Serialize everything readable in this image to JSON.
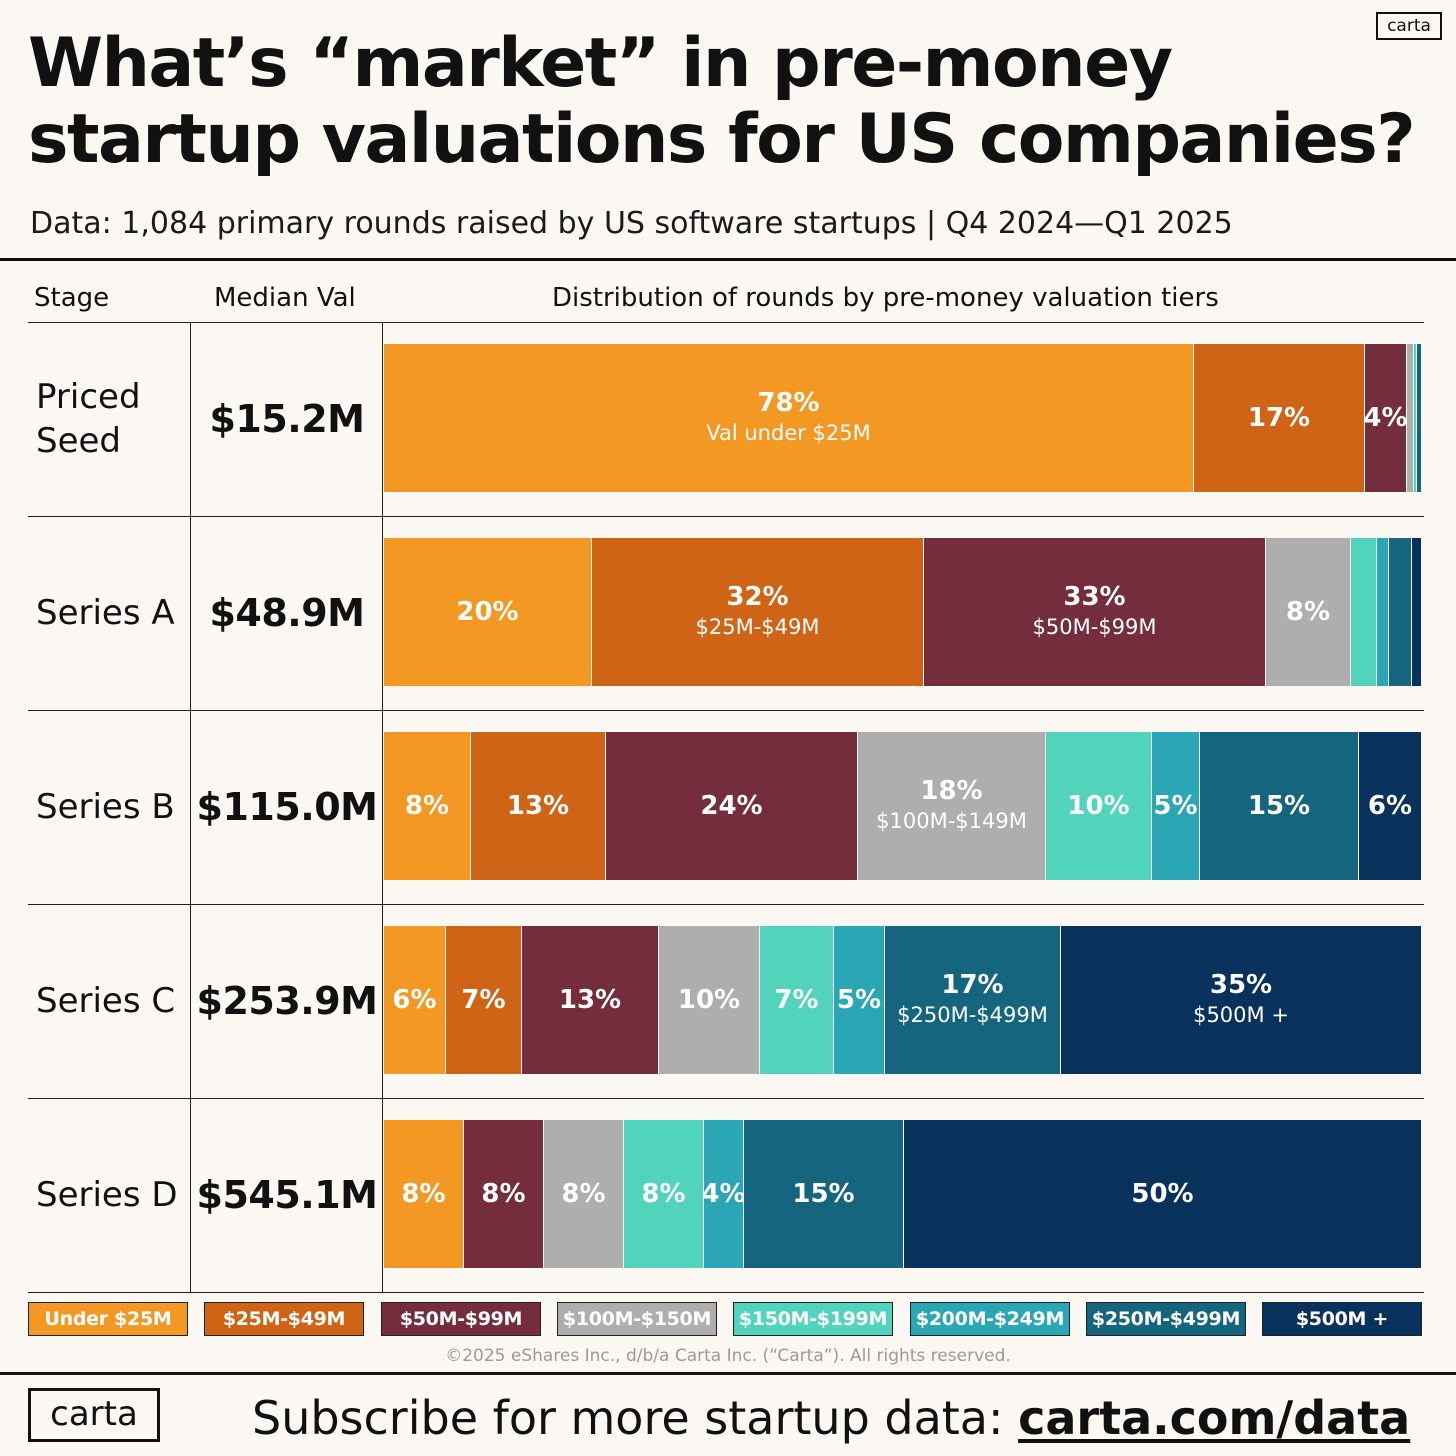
{
  "brand_badge": "carta",
  "title": "What’s “market” in pre-money startup valuations for US companies?",
  "subtitle": "Data: 1,084 primary rounds raised by US software startups | Q4 2024—Q1 2025",
  "column_headers": {
    "stage": "Stage",
    "median": "Median Val",
    "distribution": "Distribution of rounds by pre-money valuation tiers"
  },
  "chart_data": {
    "type": "bar",
    "orientation": "horizontal-stacked-100",
    "tiers": [
      "Under $25M",
      "$25M-$49M",
      "$50M-$99M",
      "$100M-$150M",
      "$150M-$199M",
      "$200M-$249M",
      "$250M-$499M",
      "$500M +"
    ],
    "colors": [
      "#f49824",
      "#cf6416",
      "#742d3c",
      "#aeaeae",
      "#52d3bb",
      "#2aa6b5",
      "#15657f",
      "#08315b"
    ],
    "rows": [
      {
        "stage": "Priced Seed",
        "median": "$15.2M",
        "segments": [
          {
            "tier": 0,
            "value": 78,
            "label": "78%",
            "sub": "Val under $25M"
          },
          {
            "tier": 1,
            "value": 16.5,
            "label": "17%"
          },
          {
            "tier": 2,
            "value": 4.1,
            "label": "4%"
          },
          {
            "tier": 3,
            "value": 0.6,
            "label": ""
          },
          {
            "tier": 4,
            "value": 0.3,
            "label": ""
          },
          {
            "tier": 6,
            "value": 0.5,
            "label": ""
          }
        ]
      },
      {
        "stage": "Series A",
        "median": "$48.9M",
        "segments": [
          {
            "tier": 0,
            "value": 20,
            "label": "20%"
          },
          {
            "tier": 1,
            "value": 32,
            "label": "32%",
            "sub": "$25M-$49M"
          },
          {
            "tier": 2,
            "value": 33,
            "label": "33%",
            "sub": "$50M-$99M"
          },
          {
            "tier": 3,
            "value": 8.2,
            "label": "8%"
          },
          {
            "tier": 4,
            "value": 2.5,
            "label": ""
          },
          {
            "tier": 5,
            "value": 1.1,
            "label": ""
          },
          {
            "tier": 6,
            "value": 2.2,
            "label": ""
          },
          {
            "tier": 7,
            "value": 1,
            "label": ""
          }
        ]
      },
      {
        "stage": "Series B",
        "median": "$115.0M",
        "segments": [
          {
            "tier": 0,
            "value": 8.4,
            "label": "8%"
          },
          {
            "tier": 1,
            "value": 13,
            "label": "13%"
          },
          {
            "tier": 2,
            "value": 24.3,
            "label": "24%"
          },
          {
            "tier": 3,
            "value": 18.1,
            "label": "18%",
            "sub": "$100M-$149M"
          },
          {
            "tier": 4,
            "value": 10.2,
            "label": "10%"
          },
          {
            "tier": 5,
            "value": 4.6,
            "label": "5%"
          },
          {
            "tier": 6,
            "value": 15.3,
            "label": "15%"
          },
          {
            "tier": 7,
            "value": 6.1,
            "label": "6%"
          }
        ]
      },
      {
        "stage": "Series C",
        "median": "$253.9M",
        "segments": [
          {
            "tier": 0,
            "value": 6,
            "label": "6%"
          },
          {
            "tier": 1,
            "value": 7.3,
            "label": "7%"
          },
          {
            "tier": 2,
            "value": 13.2,
            "label": "13%"
          },
          {
            "tier": 3,
            "value": 9.7,
            "label": "10%"
          },
          {
            "tier": 4,
            "value": 7.2,
            "label": "7%"
          },
          {
            "tier": 5,
            "value": 4.9,
            "label": "5%"
          },
          {
            "tier": 6,
            "value": 16.9,
            "label": "17%",
            "sub": "$250M-$499M"
          },
          {
            "tier": 7,
            "value": 34.8,
            "label": "35%",
            "sub": "$500M +"
          }
        ]
      },
      {
        "stage": "Series D",
        "median": "$545.1M",
        "segments": [
          {
            "tier": 0,
            "value": 7.7,
            "label": "8%"
          },
          {
            "tier": 2,
            "value": 7.7,
            "label": "8%"
          },
          {
            "tier": 3,
            "value": 7.7,
            "label": "8%"
          },
          {
            "tier": 4,
            "value": 7.7,
            "label": "8%"
          },
          {
            "tier": 5,
            "value": 3.9,
            "label": "4%"
          },
          {
            "tier": 6,
            "value": 15.4,
            "label": "15%"
          },
          {
            "tier": 7,
            "value": 49.9,
            "label": "50%"
          }
        ]
      }
    ]
  },
  "copyright": "©2025 eShares Inc., d/b/a Carta Inc. (“Carta”). All rights reserved.",
  "footer": {
    "logo": "carta",
    "cta_text": "Subscribe for more startup data: ",
    "cta_link": "carta.com/data"
  }
}
